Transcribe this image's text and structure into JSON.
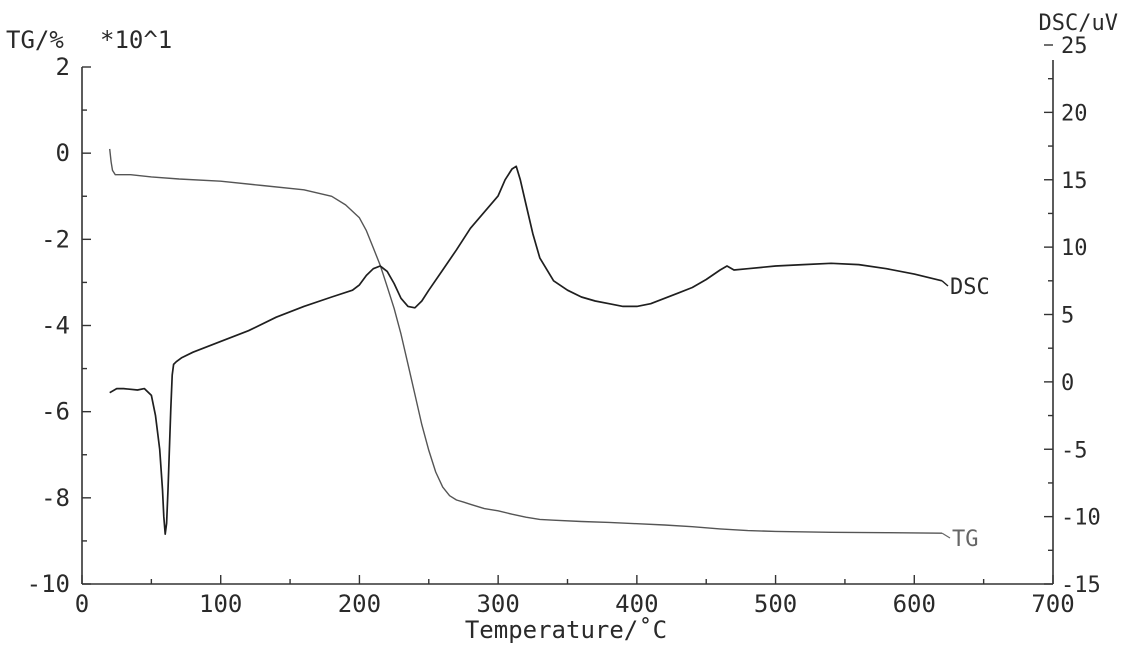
{
  "chart_data": {
    "type": "line",
    "title": "",
    "xlabel": "Temperature/˚C",
    "ylabel_left": "TG/%",
    "ylabel_left_multiplier": "*10^1",
    "ylabel_right": "DSC/uV",
    "xlim": [
      0,
      700
    ],
    "ylim_left": [
      -10,
      2
    ],
    "ylim_right": [
      -15,
      25
    ],
    "x_ticks": [
      "0",
      "100",
      "200",
      "300",
      "400",
      "500",
      "600",
      "700"
    ],
    "y_left_ticks": [
      "2",
      "0",
      "-2",
      "-4",
      "-6",
      "-8",
      "-10"
    ],
    "y_right_ticks": [
      "25",
      "20",
      "15",
      "10",
      "5",
      "0",
      "-5",
      "-10",
      "-15"
    ],
    "grid": false,
    "legend": "inline labels at line ends",
    "series": [
      {
        "name": "DSC",
        "axis": "right",
        "x": [
          20,
          25,
          30,
          40,
          45,
          50,
          53,
          56,
          58,
          59,
          60,
          61,
          62,
          63,
          64,
          65,
          66,
          68,
          72,
          80,
          100,
          120,
          140,
          160,
          180,
          195,
          200,
          205,
          210,
          215,
          220,
          225,
          230,
          235,
          240,
          245,
          250,
          260,
          270,
          280,
          290,
          300,
          305,
          310,
          313,
          316,
          320,
          325,
          330,
          340,
          350,
          360,
          370,
          380,
          390,
          400,
          410,
          420,
          430,
          440,
          450,
          460,
          465,
          470,
          480,
          500,
          520,
          540,
          560,
          580,
          600,
          620
        ],
        "y": [
          -0.8,
          -0.5,
          -0.5,
          -0.6,
          -0.5,
          -1.0,
          -2.5,
          -5.0,
          -8.0,
          -10.0,
          -11.3,
          -10.5,
          -8.0,
          -5.0,
          -2.0,
          0.5,
          1.3,
          1.5,
          1.8,
          2.2,
          3.0,
          3.8,
          4.8,
          5.6,
          6.3,
          6.8,
          7.2,
          7.9,
          8.4,
          8.6,
          8.2,
          7.3,
          6.2,
          5.6,
          5.5,
          6.0,
          6.8,
          8.3,
          9.8,
          11.4,
          12.6,
          13.8,
          15.0,
          15.8,
          16.0,
          15.0,
          13.2,
          11.0,
          9.2,
          7.5,
          6.8,
          6.3,
          6.0,
          5.8,
          5.6,
          5.6,
          5.8,
          6.2,
          6.6,
          7.0,
          7.6,
          8.3,
          8.6,
          8.3,
          8.4,
          8.6,
          8.7,
          8.8,
          8.7,
          8.4,
          8.0,
          7.5
        ]
      },
      {
        "name": "TG",
        "axis": "left",
        "x": [
          20,
          21,
          22,
          24,
          28,
          35,
          50,
          70,
          100,
          130,
          160,
          180,
          190,
          200,
          205,
          210,
          215,
          220,
          225,
          230,
          235,
          240,
          245,
          250,
          255,
          260,
          265,
          270,
          275,
          280,
          290,
          300,
          310,
          320,
          330,
          340,
          360,
          380,
          400,
          420,
          440,
          460,
          480,
          500,
          540,
          580,
          620
        ],
        "y": [
          0.1,
          -0.2,
          -0.4,
          -0.5,
          -0.5,
          -0.5,
          -0.55,
          -0.6,
          -0.65,
          -0.75,
          -0.85,
          -1.0,
          -1.2,
          -1.5,
          -1.8,
          -2.2,
          -2.6,
          -3.1,
          -3.6,
          -4.2,
          -4.9,
          -5.6,
          -6.3,
          -6.9,
          -7.4,
          -7.75,
          -7.95,
          -8.05,
          -8.1,
          -8.15,
          -8.25,
          -8.3,
          -8.38,
          -8.45,
          -8.5,
          -8.52,
          -8.55,
          -8.57,
          -8.6,
          -8.63,
          -8.67,
          -8.72,
          -8.76,
          -8.78,
          -8.8,
          -8.81,
          -8.82
        ]
      }
    ]
  }
}
